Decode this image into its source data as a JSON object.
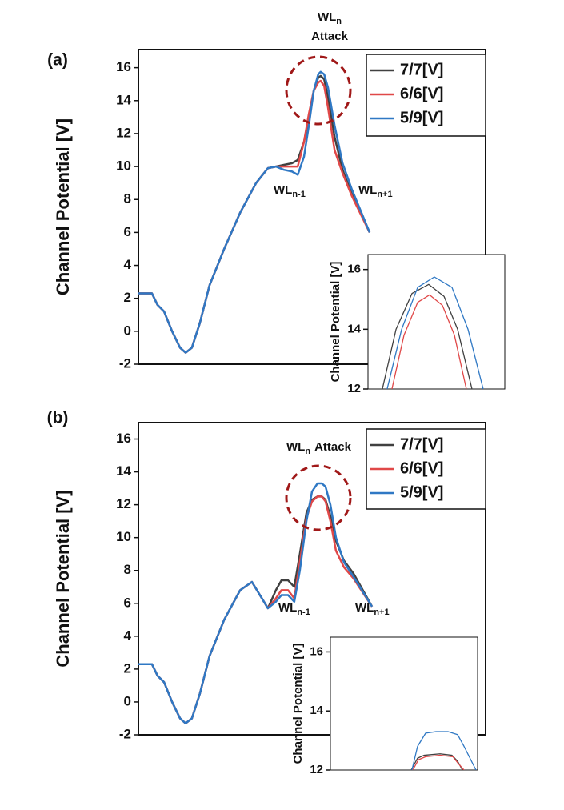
{
  "chart_data": [
    {
      "type": "line",
      "label": "(a)",
      "ylabel": "Channel Potential [V]",
      "xlim": [
        0,
        100
      ],
      "ylim": [
        -2,
        17.1
      ],
      "yticks": [
        -2,
        0,
        2,
        4,
        6,
        8,
        10,
        12,
        14,
        16
      ],
      "x": [
        0,
        3.9,
        5.5,
        7.4,
        9.7,
        12,
        13.6,
        15.4,
        17.7,
        20.5,
        24.7,
        29.3,
        33.9,
        37.3,
        39.6,
        41.9,
        44.2,
        45.9,
        47.7,
        49.1,
        50.5,
        51.8,
        52.5,
        53.5,
        54.6,
        56.5,
        58.8,
        61.5,
        66.6
      ],
      "series": [
        {
          "name": "7/7[V]",
          "color": "#404040",
          "values": [
            2.3,
            2.3,
            1.6,
            1.2,
            0,
            -1,
            -1.3,
            -1,
            0.5,
            2.8,
            5,
            7.2,
            9,
            9.9,
            10,
            10.1,
            10.2,
            10.4,
            11.5,
            13,
            14.6,
            15.4,
            15.5,
            15.3,
            14.2,
            11.8,
            9.8,
            8.3,
            6
          ]
        },
        {
          "name": "6/6[V]",
          "color": "#e04848",
          "values": [
            2.3,
            2.3,
            1.6,
            1.2,
            0,
            -1,
            -1.3,
            -1,
            0.5,
            2.8,
            5,
            7.2,
            9,
            9.9,
            10,
            10,
            10,
            10,
            11.5,
            13.2,
            14.6,
            15.1,
            15.2,
            14.9,
            13.6,
            11,
            9.6,
            8.2,
            6
          ]
        },
        {
          "name": "5/9[V]",
          "color": "#2f78c4",
          "values": [
            2.3,
            2.3,
            1.6,
            1.2,
            0,
            -1,
            -1.3,
            -1,
            0.5,
            2.8,
            5,
            7.2,
            9,
            9.9,
            10,
            9.8,
            9.7,
            9.5,
            10.6,
            12.5,
            14.6,
            15.6,
            15.75,
            15.6,
            14.8,
            12.5,
            10.2,
            8.6,
            6
          ]
        }
      ],
      "annotations": [
        {
          "text": "WL",
          "sub": "n"
        },
        {
          "text": "Attack"
        },
        {
          "text": "WL",
          "sub": "n-1"
        },
        {
          "text": "WL",
          "sub": "n+1"
        }
      ]
    },
    {
      "type": "line",
      "ylabel": "Channel Potential [V]",
      "xlim": [
        0,
        100
      ],
      "ylim": [
        12,
        16.5
      ],
      "yticks": [
        12,
        14,
        16
      ],
      "series": [
        {
          "name": "7/7[V]",
          "color": "#404040",
          "x": [
            10.5,
            20.5,
            32.2,
            44.4,
            55.6,
            65.5,
            76
          ],
          "values": [
            12,
            14,
            15.2,
            15.5,
            15.1,
            14,
            12
          ]
        },
        {
          "name": "6/6[V]",
          "color": "#e04848",
          "x": [
            17.5,
            26.3,
            36.3,
            45,
            54.4,
            63.2,
            71.9
          ],
          "values": [
            12,
            13.8,
            14.9,
            15.15,
            14.8,
            13.8,
            12
          ]
        },
        {
          "name": "5/9[V]",
          "color": "#2f78c4",
          "x": [
            14,
            24.6,
            36.3,
            48.5,
            61.4,
            73.1,
            84.2
          ],
          "values": [
            12,
            14,
            15.4,
            15.75,
            15.4,
            14,
            12
          ]
        }
      ]
    },
    {
      "type": "line",
      "label": "(b)",
      "ylabel": "Channel Potential [V]",
      "xlim": [
        0,
        100
      ],
      "ylim": [
        -2,
        17
      ],
      "yticks": [
        -2,
        0,
        2,
        4,
        6,
        8,
        10,
        12,
        14,
        16
      ],
      "x": [
        0,
        3.9,
        5.5,
        7.4,
        9.7,
        12,
        13.6,
        15.4,
        17.7,
        20.5,
        24.7,
        29.3,
        32.7,
        35,
        37.3,
        39.6,
        41.2,
        43.1,
        44.9,
        46.5,
        48.4,
        50,
        51.6,
        52.8,
        53.9,
        55.3,
        56.9,
        59.2,
        62,
        67.3
      ],
      "series": [
        {
          "name": "7/7[V]",
          "color": "#404040",
          "values": [
            2.3,
            2.3,
            1.6,
            1.2,
            0,
            -1,
            -1.3,
            -1,
            0.5,
            2.8,
            5,
            6.8,
            7.3,
            6.5,
            5.7,
            6.8,
            7.4,
            7.4,
            7,
            9,
            11.5,
            12.3,
            12.5,
            12.5,
            12.3,
            11.3,
            9.8,
            8.6,
            7.8,
            5.8
          ]
        },
        {
          "name": "6/6[V]",
          "color": "#e04848",
          "values": [
            2.3,
            2.3,
            1.6,
            1.2,
            0,
            -1,
            -1.3,
            -1,
            0.5,
            2.8,
            5,
            6.8,
            7.3,
            6.5,
            5.7,
            6.3,
            6.8,
            6.8,
            6.3,
            8.5,
            11.2,
            12.2,
            12.5,
            12.5,
            12.2,
            11,
            9.2,
            8.2,
            7.5,
            5.8
          ]
        },
        {
          "name": "5/9[V]",
          "color": "#2f78c4",
          "values": [
            2.3,
            2.3,
            1.6,
            1.2,
            0,
            -1,
            -1.3,
            -1,
            0.5,
            2.8,
            5,
            6.8,
            7.3,
            6.5,
            5.7,
            6.1,
            6.5,
            6.5,
            6.1,
            8,
            11,
            12.8,
            13.3,
            13.3,
            13.1,
            12,
            10,
            8.5,
            7.6,
            5.8
          ]
        }
      ],
      "annotations": [
        {
          "text": "WL",
          "sub": "n",
          "suffix": "Attack"
        },
        {
          "text": "WL",
          "sub": "n-1"
        },
        {
          "text": "WL",
          "sub": "n+1"
        }
      ]
    },
    {
      "type": "line",
      "ylabel": "Channel Potential [V]",
      "xlim": [
        0,
        100
      ],
      "ylim": [
        12,
        16.5
      ],
      "yticks": [
        12,
        14,
        16
      ],
      "series": [
        {
          "name": "7/7[V]",
          "color": "#404040",
          "x": [
            54.9,
            59.2,
            63.6,
            74.5,
            82.6,
            86.4,
            89.7
          ],
          "values": [
            12,
            12.4,
            12.5,
            12.55,
            12.5,
            12.3,
            12
          ]
        },
        {
          "name": "6/6[V]",
          "color": "#e04848",
          "x": [
            56,
            59.8,
            64.7,
            74.5,
            83.2,
            86.4,
            90.8
          ],
          "values": [
            12,
            12.35,
            12.45,
            12.5,
            12.45,
            12.25,
            12
          ]
        },
        {
          "name": "5/9[V]",
          "color": "#2f78c4",
          "x": [
            55.4,
            59.2,
            64.7,
            71.7,
            79.9,
            86.4,
            90.8,
            98.9
          ],
          "values": [
            12,
            12.8,
            13.25,
            13.3,
            13.3,
            13.2,
            12.8,
            12
          ]
        }
      ]
    }
  ]
}
